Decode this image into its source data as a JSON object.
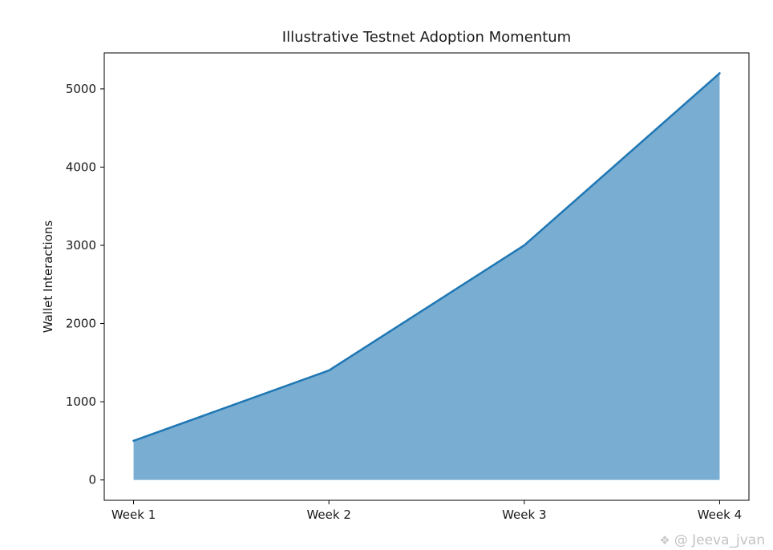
{
  "figure": {
    "background": "#ffffff"
  },
  "watermark": {
    "icon": "compass-diamond-icon",
    "glyph": "❖",
    "text": "@ Jeeva_jvan",
    "color": "#c3c3c3"
  },
  "chart_data": {
    "type": "area",
    "title": "Illustrative Testnet Adoption Momentum",
    "xlabel": "",
    "ylabel": "Wallet Interactions",
    "categories": [
      "Week 1",
      "Week 2",
      "Week 3",
      "Week 4"
    ],
    "values": [
      500,
      1400,
      3000,
      5200
    ],
    "yticks": [
      0,
      1000,
      2000,
      3000,
      4000,
      5000
    ],
    "ylim": [
      -260,
      5460
    ],
    "xlim": [
      -0.15,
      3.15
    ],
    "grid": false,
    "legend": false,
    "line_color": "#1f77b4",
    "fill_color": "#1f77b4",
    "fill_opacity": 0.6,
    "spine_color": "#000000"
  }
}
